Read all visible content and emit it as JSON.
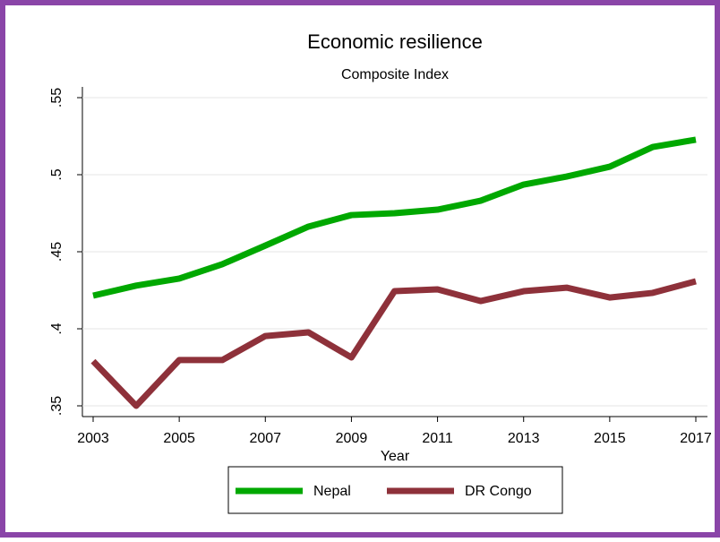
{
  "chart_data": {
    "type": "line",
    "title": "Economic resilience",
    "subtitle": "Composite Index",
    "x_label": "Year",
    "x": [
      2003,
      2004,
      2005,
      2006,
      2007,
      2008,
      2009,
      2010,
      2011,
      2012,
      2013,
      2014,
      2015,
      2016,
      2017
    ],
    "series": [
      {
        "name": "Nepal",
        "color": "#00a800",
        "values": [
          0.4215,
          0.428,
          0.4326,
          0.4419,
          0.454,
          0.4663,
          0.4738,
          0.475,
          0.4773,
          0.4831,
          0.4936,
          0.4988,
          0.5052,
          0.518,
          0.5227
        ]
      },
      {
        "name": "DR Congo",
        "color": "#8e313a",
        "values": [
          0.379,
          0.35,
          0.3797,
          0.3797,
          0.3953,
          0.3977,
          0.3814,
          0.4244,
          0.4256,
          0.418,
          0.4244,
          0.4267,
          0.4203,
          0.4233,
          0.4308
        ]
      }
    ],
    "xlim": [
      2003,
      2017
    ],
    "xticks": [
      2003,
      2005,
      2007,
      2009,
      2011,
      2013,
      2015,
      2017
    ],
    "ylim": [
      0.35,
      0.55
    ],
    "yticks": [
      {
        "value": 0.35,
        "label": ".35"
      },
      {
        "value": 0.4,
        "label": ".4"
      },
      {
        "value": 0.45,
        "label": ".45"
      },
      {
        "value": 0.5,
        "label": ".5"
      },
      {
        "value": 0.55,
        "label": ".55"
      }
    ],
    "grid": true
  }
}
